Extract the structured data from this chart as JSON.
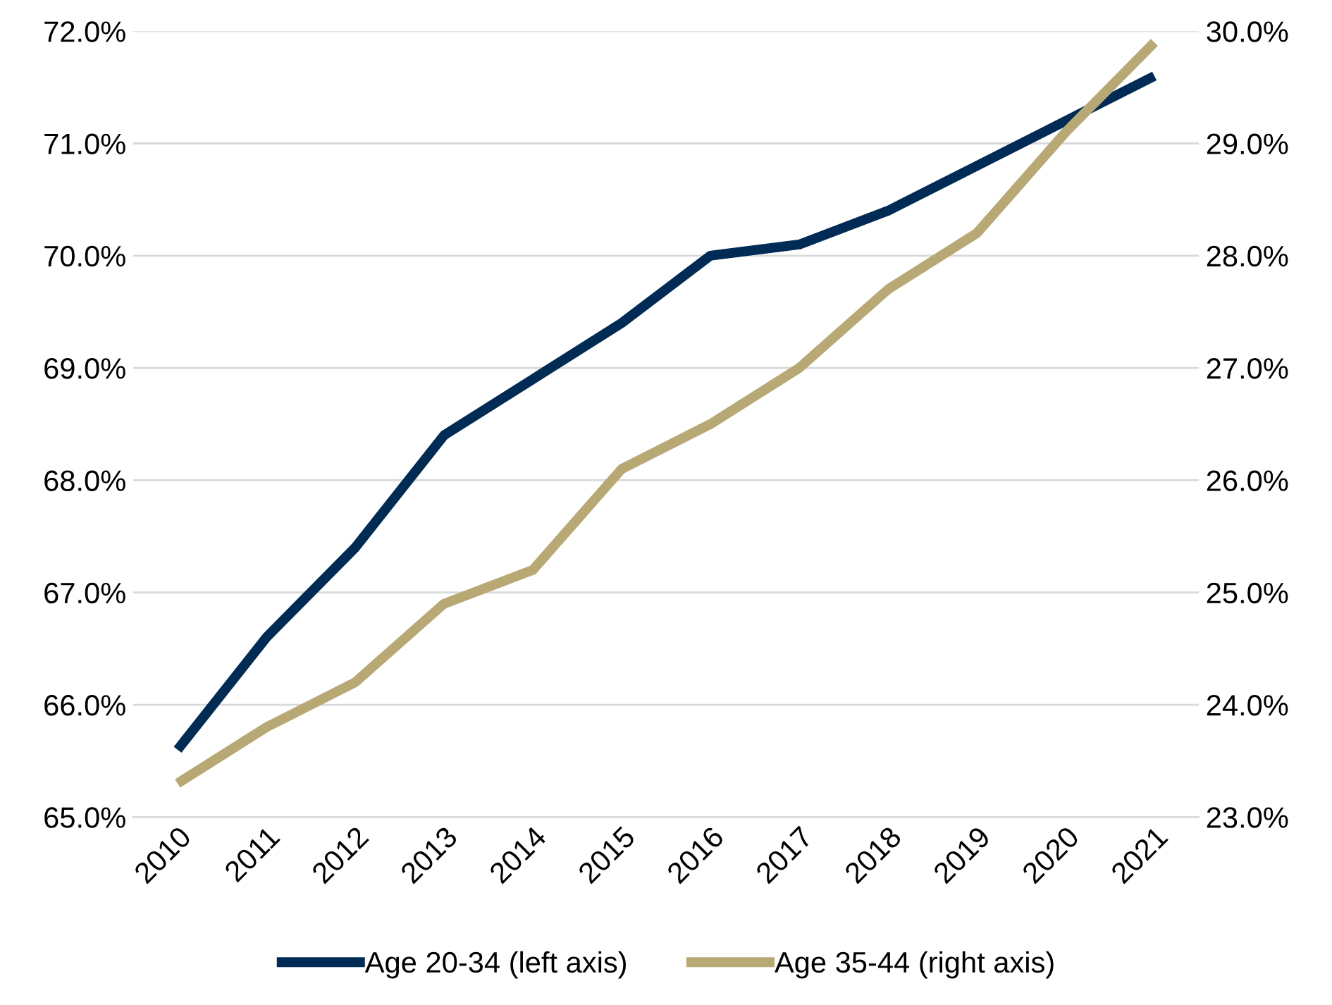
{
  "chart_data": {
    "type": "line",
    "categories": [
      "2010",
      "2011",
      "2012",
      "2013",
      "2014",
      "2015",
      "2016",
      "2017",
      "2018",
      "2019",
      "2020",
      "2021"
    ],
    "series": [
      {
        "name": "Age 20-34 (left axis)",
        "color": "#002b54",
        "values": [
          65.6,
          66.6,
          67.4,
          68.4,
          68.9,
          69.4,
          70.0,
          70.1,
          70.4,
          70.8,
          71.2,
          71.6
        ]
      },
      {
        "name": "Age 35-44 (right axis)",
        "color": "#b8a874",
        "axis": "y2",
        "values": [
          23.3,
          23.8,
          24.2,
          24.9,
          25.2,
          26.1,
          26.5,
          27.0,
          27.7,
          28.2,
          29.1,
          29.9
        ]
      }
    ],
    "ylim": [
      65,
      72
    ],
    "yticks": [
      {
        "value": 65,
        "label": "65.0%"
      },
      {
        "value": 66,
        "label": "66.0%"
      },
      {
        "value": 67,
        "label": "67.0%"
      },
      {
        "value": 68,
        "label": "68.0%"
      },
      {
        "value": 69,
        "label": "69.0%"
      },
      {
        "value": 70,
        "label": "70.0%"
      },
      {
        "value": 71,
        "label": "71.0%"
      },
      {
        "value": 72,
        "label": "72.0%"
      }
    ],
    "y2lim": [
      23,
      30
    ],
    "y2ticks": [
      {
        "value": 23,
        "label": "23.0%"
      },
      {
        "value": 24,
        "label": "24.0%"
      },
      {
        "value": 25,
        "label": "25.0%"
      },
      {
        "value": 26,
        "label": "26.0%"
      },
      {
        "value": 27,
        "label": "27.0%"
      },
      {
        "value": 28,
        "label": "28.0%"
      },
      {
        "value": 29,
        "label": "29.0%"
      },
      {
        "value": 30,
        "label": "30.0%"
      }
    ],
    "grid": "y",
    "legend": "bottom",
    "marker": "none",
    "line_style": "solid"
  }
}
